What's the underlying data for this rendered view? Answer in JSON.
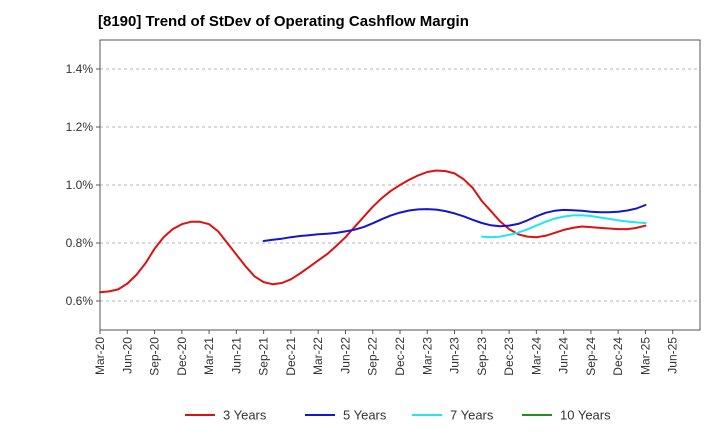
{
  "chart_data": {
    "type": "line",
    "title": "[8190]  Trend of StDev of Operating Cashflow Margin",
    "xlabel": "",
    "ylabel": "",
    "x_ticks": [
      "Mar-20",
      "Jun-20",
      "Sep-20",
      "Dec-20",
      "Mar-21",
      "Jun-21",
      "Sep-21",
      "Dec-21",
      "Mar-22",
      "Jun-22",
      "Sep-22",
      "Dec-22",
      "Mar-23",
      "Jun-23",
      "Sep-23",
      "Dec-23",
      "Mar-24",
      "Jun-24",
      "Sep-24",
      "Dec-24",
      "Mar-25",
      "Jun-25"
    ],
    "y_ticks": [
      "0.6%",
      "0.8%",
      "1.0%",
      "1.2%",
      "1.4%"
    ],
    "ylim": [
      0.5,
      1.5
    ],
    "y_unit": "%",
    "grid": "horizontal dashed",
    "legend_position": "bottom",
    "series": [
      {
        "name": "3 Years",
        "color": "#dd1111",
        "x": [
          "Mar-20",
          "Apr-20",
          "May-20",
          "Jun-20",
          "Jul-20",
          "Aug-20",
          "Sep-20",
          "Oct-20",
          "Nov-20",
          "Dec-20",
          "Jan-21",
          "Feb-21",
          "Mar-21",
          "Apr-21",
          "May-21",
          "Jun-21",
          "Jul-21",
          "Aug-21",
          "Sep-21",
          "Oct-21",
          "Nov-21",
          "Dec-21",
          "Jan-22",
          "Feb-22",
          "Mar-22",
          "Apr-22",
          "May-22",
          "Jun-22",
          "Jul-22",
          "Aug-22",
          "Sep-22",
          "Oct-22",
          "Nov-22",
          "Dec-22",
          "Jan-23",
          "Feb-23",
          "Mar-23",
          "Apr-23",
          "May-23",
          "Jun-23",
          "Jul-23",
          "Aug-23",
          "Sep-23",
          "Oct-23",
          "Nov-23",
          "Dec-23",
          "Jan-24",
          "Feb-24",
          "Mar-24",
          "Apr-24",
          "May-24",
          "Jun-24",
          "Jul-24",
          "Aug-24",
          "Sep-24",
          "Oct-24",
          "Nov-24",
          "Dec-24",
          "Jan-25",
          "Feb-25",
          "Mar-25"
        ],
        "values": [
          0.63,
          0.633,
          0.64,
          0.66,
          0.69,
          0.73,
          0.78,
          0.82,
          0.848,
          0.865,
          0.873,
          0.873,
          0.865,
          0.84,
          0.8,
          0.76,
          0.72,
          0.685,
          0.665,
          0.658,
          0.662,
          0.675,
          0.695,
          0.717,
          0.74,
          0.762,
          0.79,
          0.82,
          0.855,
          0.89,
          0.925,
          0.955,
          0.98,
          1.0,
          1.018,
          1.033,
          1.045,
          1.05,
          1.048,
          1.04,
          1.02,
          0.99,
          0.945,
          0.91,
          0.875,
          0.848,
          0.83,
          0.822,
          0.82,
          0.825,
          0.835,
          0.845,
          0.852,
          0.857,
          0.855,
          0.852,
          0.85,
          0.848,
          0.848,
          0.852,
          0.86
        ]
      },
      {
        "name": "5 Years",
        "color": "#1515cc",
        "x": [
          "Sep-21",
          "Oct-21",
          "Nov-21",
          "Dec-21",
          "Jan-22",
          "Feb-22",
          "Mar-22",
          "Apr-22",
          "May-22",
          "Jun-22",
          "Jul-22",
          "Aug-22",
          "Sep-22",
          "Oct-22",
          "Nov-22",
          "Dec-22",
          "Jan-23",
          "Feb-23",
          "Mar-23",
          "Apr-23",
          "May-23",
          "Jun-23",
          "Jul-23",
          "Aug-23",
          "Sep-23",
          "Oct-23",
          "Nov-23",
          "Dec-23",
          "Jan-24",
          "Feb-24",
          "Mar-24",
          "Apr-24",
          "May-24",
          "Jun-24",
          "Jul-24",
          "Aug-24",
          "Sep-24",
          "Oct-24",
          "Nov-24",
          "Dec-24",
          "Jan-25",
          "Feb-25",
          "Mar-25"
        ],
        "values": [
          0.807,
          0.811,
          0.815,
          0.82,
          0.824,
          0.827,
          0.83,
          0.832,
          0.835,
          0.84,
          0.846,
          0.855,
          0.868,
          0.882,
          0.895,
          0.905,
          0.912,
          0.916,
          0.917,
          0.915,
          0.91,
          0.902,
          0.892,
          0.88,
          0.869,
          0.861,
          0.858,
          0.86,
          0.866,
          0.878,
          0.892,
          0.904,
          0.911,
          0.914,
          0.913,
          0.911,
          0.908,
          0.906,
          0.906,
          0.908,
          0.912,
          0.919,
          0.931
        ]
      },
      {
        "name": "7 Years",
        "color": "#22e5ee",
        "x": [
          "Sep-23",
          "Oct-23",
          "Nov-23",
          "Dec-23",
          "Jan-24",
          "Feb-24",
          "Mar-24",
          "Apr-24",
          "May-24",
          "Jun-24",
          "Jul-24",
          "Aug-24",
          "Sep-24",
          "Oct-24",
          "Nov-24",
          "Dec-24",
          "Jan-25",
          "Feb-25",
          "Mar-25"
        ],
        "values": [
          0.822,
          0.82,
          0.822,
          0.828,
          0.836,
          0.847,
          0.86,
          0.873,
          0.884,
          0.891,
          0.895,
          0.896,
          0.893,
          0.888,
          0.883,
          0.878,
          0.874,
          0.871,
          0.869
        ]
      },
      {
        "name": "10 Years",
        "color": "#1f8f1f",
        "x": [],
        "values": []
      }
    ]
  }
}
